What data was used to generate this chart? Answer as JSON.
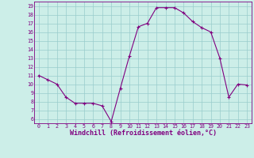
{
  "x": [
    0,
    1,
    2,
    3,
    4,
    5,
    6,
    7,
    8,
    9,
    10,
    11,
    12,
    13,
    14,
    15,
    16,
    17,
    18,
    19,
    20,
    21,
    22,
    23
  ],
  "y": [
    11,
    10.5,
    10,
    8.5,
    7.8,
    7.8,
    7.8,
    7.5,
    5.7,
    9.5,
    13.2,
    16.6,
    17.0,
    18.8,
    18.8,
    18.8,
    18.2,
    17.2,
    16.5,
    16.0,
    13.0,
    8.5,
    10.0,
    9.9
  ],
  "line_color": "#800080",
  "marker_color": "#800080",
  "bg_color": "#cceee8",
  "grid_color": "#99cccc",
  "xlabel": "Windchill (Refroidissement éolien,°C)",
  "ylabel": "",
  "xlim": [
    -0.5,
    23.5
  ],
  "ylim": [
    5.5,
    19.5
  ],
  "yticks": [
    6,
    7,
    8,
    9,
    10,
    11,
    12,
    13,
    14,
    15,
    16,
    17,
    18,
    19
  ],
  "xticks": [
    0,
    1,
    2,
    3,
    4,
    5,
    6,
    7,
    8,
    9,
    10,
    11,
    12,
    13,
    14,
    15,
    16,
    17,
    18,
    19,
    20,
    21,
    22,
    23
  ],
  "tick_fontsize": 4.8,
  "xlabel_fontsize": 6.0,
  "line_width": 0.8,
  "marker_size": 2.0
}
